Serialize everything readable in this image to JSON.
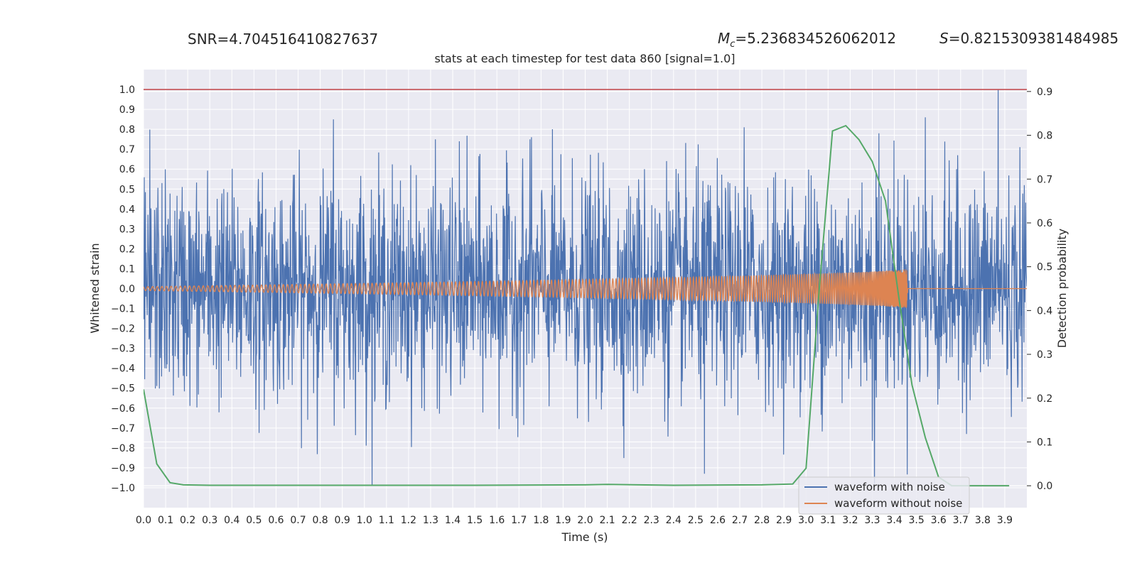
{
  "header": {
    "snr": "SNR=4.704516410827637",
    "mc_symbol": "M",
    "mc_sub": "c",
    "mc_value": "=5.236834526062012",
    "s_symbol": "S",
    "s_value": "=0.8215309381484985"
  },
  "chart_data": {
    "type": "line",
    "title": "stats at each timestep for test data 860 [signal=1.0]",
    "xlabel": "Time (s)",
    "ylabel": "Whitened strain",
    "y2label": "Detection probability",
    "xlim": [
      0,
      4.0
    ],
    "ylim": [
      -1.1,
      1.1
    ],
    "y2lim": [
      -0.05,
      0.95
    ],
    "x_ticks": [
      "0.0",
      "0.1",
      "0.2",
      "0.3",
      "0.4",
      "0.5",
      "0.6",
      "0.7",
      "0.8",
      "0.9",
      "1.0",
      "1.1",
      "1.2",
      "1.3",
      "1.4",
      "1.5",
      "1.6",
      "1.7",
      "1.8",
      "1.9",
      "2.0",
      "2.1",
      "2.2",
      "2.3",
      "2.4",
      "2.5",
      "2.6",
      "2.7",
      "2.8",
      "2.9",
      "3.0",
      "3.1",
      "3.2",
      "3.3",
      "3.4",
      "3.5",
      "3.6",
      "3.7",
      "3.8",
      "3.9"
    ],
    "y_ticks": [
      "1.0",
      "0.9",
      "0.8",
      "0.7",
      "0.6",
      "0.5",
      "0.4",
      "0.3",
      "0.2",
      "0.1",
      "0.0",
      "-0.1",
      "-0.2",
      "-0.3",
      "-0.4",
      "-0.5",
      "-0.6",
      "-0.7",
      "-0.8",
      "-0.9",
      "-1.0"
    ],
    "y2_ticks": [
      "0.9",
      "0.8",
      "0.7",
      "0.6",
      "0.5",
      "0.4",
      "0.3",
      "0.2",
      "0.1",
      "0.0"
    ],
    "threshold": {
      "y": 1.0,
      "color": "#c44e52"
    },
    "grid": true,
    "legend_position": "lower right",
    "legend": [
      {
        "label": "waveform with noise",
        "color": "#4c72b0"
      },
      {
        "label": "waveform without noise",
        "color": "#dd8452"
      }
    ],
    "series": [
      {
        "name": "waveform with noise",
        "axis": "left",
        "color": "#4c72b0",
        "description_peaks": [
          {
            "x": 0.86,
            "y": 0.85
          },
          {
            "x": 1.43,
            "y": 0.74
          },
          {
            "x": 1.75,
            "y": 0.75
          },
          {
            "x": 2.72,
            "y": 0.81
          },
          {
            "x": 3.33,
            "y": 0.78
          },
          {
            "x": 3.54,
            "y": 0.86
          },
          {
            "x": 3.87,
            "y": 1.0
          },
          {
            "x": 2.54,
            "y": -0.93
          },
          {
            "x": 3.31,
            "y": -0.98
          }
        ]
      },
      {
        "name": "waveform without noise",
        "axis": "left",
        "color": "#dd8452",
        "chirp": {
          "start_amp": 0.01,
          "end_amp": 0.1,
          "start_freq_hz": 30,
          "end_freq_hz": 250,
          "merger_time": 3.46
        }
      },
      {
        "name": "detection probability",
        "axis": "right",
        "color": "#55a868",
        "x": [
          0.0,
          0.06,
          0.12,
          0.18,
          0.3,
          0.6,
          1.0,
          1.5,
          2.0,
          2.1,
          2.4,
          2.8,
          2.94,
          3.0,
          3.06,
          3.12,
          3.18,
          3.24,
          3.3,
          3.36,
          3.42,
          3.48,
          3.54,
          3.6,
          3.66,
          3.72,
          3.92
        ],
        "y": [
          0.22,
          0.05,
          0.007,
          0.002,
          0.001,
          0.001,
          0.001,
          0.001,
          0.002,
          0.003,
          0.001,
          0.002,
          0.004,
          0.04,
          0.45,
          0.81,
          0.822,
          0.79,
          0.74,
          0.65,
          0.43,
          0.23,
          0.11,
          0.02,
          0.0,
          0.0,
          0.0
        ]
      }
    ]
  }
}
